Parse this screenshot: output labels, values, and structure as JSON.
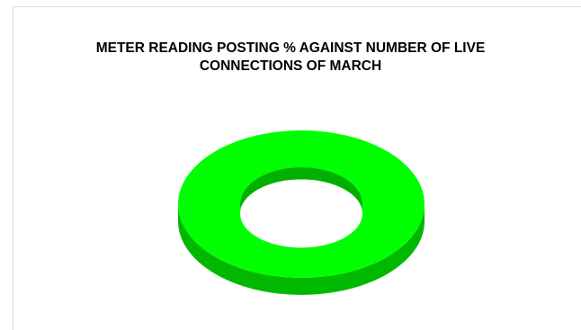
{
  "chart_data": {
    "type": "pie",
    "title_lines": [
      "METER READING POSTING % AGAINST NUMBER OF LIVE",
      "CONNECTIONS OF MARCH"
    ],
    "slices": [
      {
        "value": 100
      }
    ],
    "style": "3d-doughnut",
    "colors": {
      "top": "#00ff00",
      "side": "#00b800",
      "inner_wall": "#00b000",
      "frame": "#d9d9d9"
    },
    "legend": "none"
  }
}
